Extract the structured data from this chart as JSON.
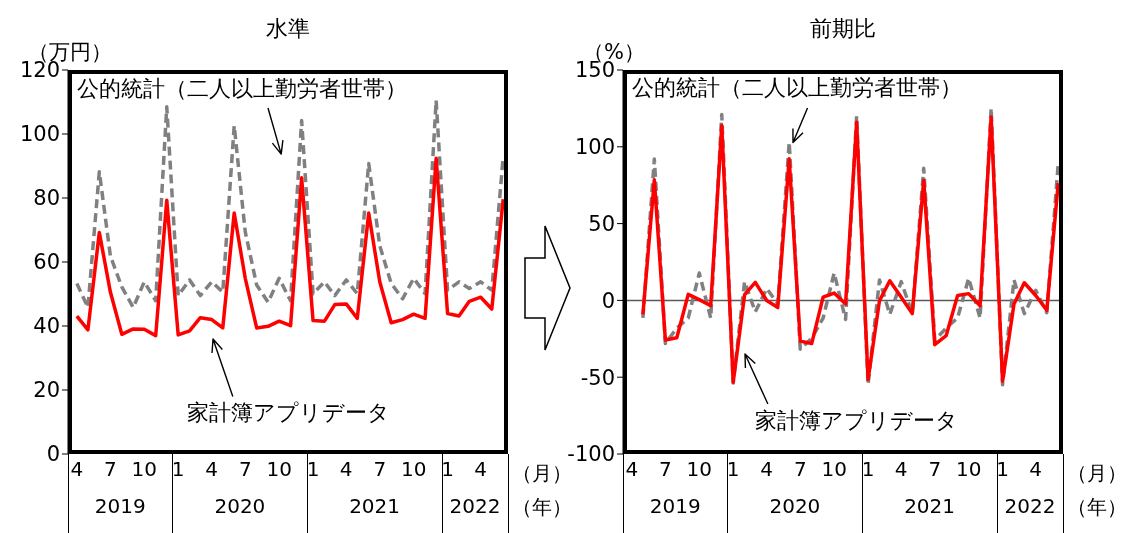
{
  "chart_data": [
    {
      "type": "line",
      "title": "水準",
      "ylabel": "（万円）",
      "xlabel": "（月）",
      "annotations": [
        "2019",
        "2020",
        "2021",
        "2022",
        "（年）"
      ],
      "marker": "none",
      "xlim": [
        "2019-03-08",
        "2022-06-14"
      ],
      "x": [
        "2019-04",
        "2019-05",
        "2019-06",
        "2019-07",
        "2019-08",
        "2019-09",
        "2019-10",
        "2019-11",
        "2019-12",
        "2020-01",
        "2020-02",
        "2020-03",
        "2020-04",
        "2020-05",
        "2020-06",
        "2020-07",
        "2020-08",
        "2020-09",
        "2020-10",
        "2020-11",
        "2020-12",
        "2021-01",
        "2021-02",
        "2021-03",
        "2021-04",
        "2021-05",
        "2021-06",
        "2021-07",
        "2021-08",
        "2021-09",
        "2021-10",
        "2021-11",
        "2021-12",
        "2022-01",
        "2022-02",
        "2022-03",
        "2022-04",
        "2022-05",
        "2022-06"
      ],
      "xticks": [
        {
          "value": "2019-04",
          "label": "4"
        },
        {
          "value": "2019-07",
          "label": "7"
        },
        {
          "value": "2019-10",
          "label": "10"
        },
        {
          "value": "2020-01",
          "label": "1"
        },
        {
          "value": "2020-04",
          "label": "4"
        },
        {
          "value": "2020-07",
          "label": "7"
        },
        {
          "value": "2020-10",
          "label": "10"
        },
        {
          "value": "2021-01",
          "label": "1"
        },
        {
          "value": "2021-04",
          "label": "4"
        },
        {
          "value": "2021-07",
          "label": "7"
        },
        {
          "value": "2021-10",
          "label": "10"
        },
        {
          "value": "2022-01",
          "label": "1"
        },
        {
          "value": "2022-04",
          "label": "4"
        }
      ],
      "ylim": [
        0,
        120
      ],
      "yticks": [
        0,
        20,
        40,
        60,
        80,
        100,
        120
      ],
      "series": [
        {
          "name": "公的統計（二人以上勤労者世帯）",
          "color": "#808080",
          "line_style": "dashed",
          "values": [
            53.3,
            45.8,
            88.2,
            61.9,
            52.2,
            45.8,
            53.8,
            47.9,
            108.5,
            49.5,
            54.4,
            49.5,
            53.8,
            50.6,
            102.6,
            69.4,
            52.8,
            47.4,
            54.9,
            47.9,
            104.2,
            50.1,
            53.8,
            49.5,
            54.4,
            50.1,
            90.8,
            65.1,
            53.3,
            48.5,
            54.9,
            50.1,
            110.5,
            51.2,
            53.8,
            51.7,
            53.8,
            51.2,
            93.0
          ]
        },
        {
          "name": "家計簿アプリデータ",
          "color": "#ff0000",
          "line_style": "solid",
          "values": [
            43.1,
            38.8,
            69.2,
            50.6,
            37.4,
            39.1,
            39.0,
            37.0,
            79.3,
            37.2,
            38.5,
            42.6,
            42.0,
            39.4,
            75.3,
            54.9,
            39.4,
            39.9,
            41.5,
            40.1,
            86.3,
            41.7,
            41.5,
            46.7,
            46.9,
            42.4,
            75.3,
            53.8,
            41.0,
            42.0,
            43.7,
            42.4,
            92.4,
            43.9,
            43.1,
            47.7,
            49.0,
            45.3,
            79.6
          ]
        }
      ]
    },
    {
      "type": "line",
      "title": "前期比",
      "ylabel": "（%）",
      "xlabel": "（月）",
      "annotations": [
        "2019",
        "2020",
        "2021",
        "2022",
        "（年）"
      ],
      "marker": "none",
      "xlim": [
        "2019-03-08",
        "2022-06-14"
      ],
      "x": [
        "2019-05",
        "2019-06",
        "2019-07",
        "2019-08",
        "2019-09",
        "2019-10",
        "2019-11",
        "2019-12",
        "2020-01",
        "2020-02",
        "2020-03",
        "2020-04",
        "2020-05",
        "2020-06",
        "2020-07",
        "2020-08",
        "2020-09",
        "2020-10",
        "2020-11",
        "2020-12",
        "2021-01",
        "2021-02",
        "2021-03",
        "2021-04",
        "2021-05",
        "2021-06",
        "2021-07",
        "2021-08",
        "2021-09",
        "2021-10",
        "2021-11",
        "2021-12",
        "2022-01",
        "2022-02",
        "2022-03",
        "2022-04",
        "2022-05",
        "2022-06"
      ],
      "xticks": [
        {
          "value": "2019-04",
          "label": "4"
        },
        {
          "value": "2019-07",
          "label": "7"
        },
        {
          "value": "2019-10",
          "label": "10"
        },
        {
          "value": "2020-01",
          "label": "1"
        },
        {
          "value": "2020-04",
          "label": "4"
        },
        {
          "value": "2020-07",
          "label": "7"
        },
        {
          "value": "2020-10",
          "label": "10"
        },
        {
          "value": "2021-01",
          "label": "1"
        },
        {
          "value": "2021-04",
          "label": "4"
        },
        {
          "value": "2021-07",
          "label": "7"
        },
        {
          "value": "2021-10",
          "label": "10"
        },
        {
          "value": "2022-01",
          "label": "1"
        },
        {
          "value": "2022-04",
          "label": "4"
        }
      ],
      "ylim": [
        -100,
        150
      ],
      "yticks": [
        -100,
        -50,
        0,
        50,
        100,
        150
      ],
      "ref_lines": [
        {
          "axis": "y",
          "value": 0
        }
      ],
      "series": [
        {
          "name": "公的統計（二人以上勤労者世帯）",
          "color": "#808080",
          "line_style": "dashed",
          "values": [
            -11.4,
            92,
            -28.1,
            -18,
            -11.5,
            17.8,
            -11.5,
            121,
            -53.8,
            12.2,
            -7.5,
            7.7,
            -2.3,
            103,
            -31.8,
            -24.7,
            -11.5,
            17.8,
            -12.4,
            120,
            -54.9,
            13.3,
            -9.1,
            12.2,
            -8.6,
            86,
            -25.8,
            -18,
            -11.4,
            14.4,
            -11.5,
            125,
            -54.9,
            13.3,
            -8.6,
            6.6,
            -8,
            89
          ]
        },
        {
          "name": "家計簿アプリデータ",
          "color": "#ff0000",
          "line_style": "solid",
          "values": [
            -9.1,
            78.5,
            -25.8,
            -24.3,
            3.9,
            0.5,
            -3.5,
            113.8,
            -53.3,
            3.7,
            11.7,
            -0.1,
            -4.6,
            92.2,
            -26.5,
            -28.1,
            2.1,
            4.8,
            -2.3,
            116,
            -51.5,
            -0.2,
            12.8,
            2.1,
            -8.6,
            78.1,
            -28.8,
            -22.9,
            3.2,
            4.4,
            -3.5,
            119.4,
            -52.6,
            -2.3,
            11.5,
            3.2,
            -6.4,
            76.3
          ]
        }
      ]
    }
  ]
}
